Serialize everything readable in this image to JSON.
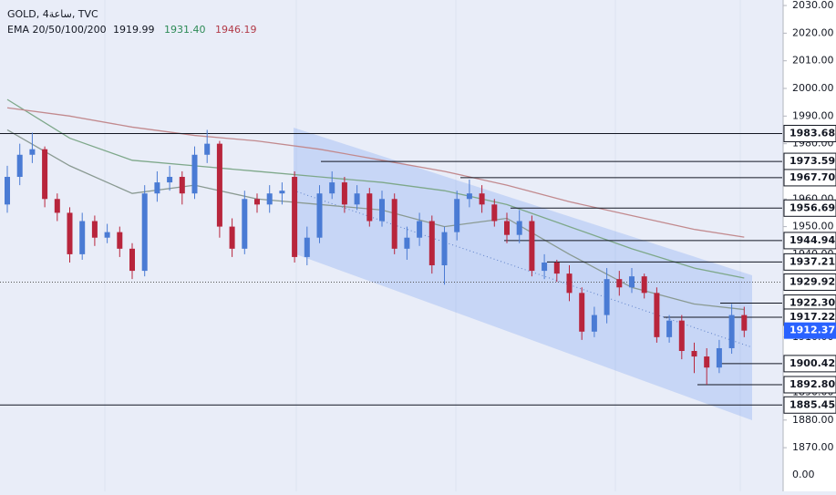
{
  "chart_data": {
    "type": "candlestick",
    "title": "GOLD, 4ساعة, TVC",
    "indicator_label": "EMA 20/50/100/200",
    "ylim": [
      1854.2,
      2032
    ],
    "yticks": [
      {
        "value": 2030,
        "label": "2030.00"
      },
      {
        "value": 2020,
        "label": "2020.00"
      },
      {
        "value": 2010,
        "label": "2010.00"
      },
      {
        "value": 2000,
        "label": "2000.00"
      },
      {
        "value": 1990,
        "label": "1990.00"
      },
      {
        "value": 1980,
        "label": "1980.00"
      },
      {
        "value": 1970,
        "label": "1970.00"
      },
      {
        "value": 1960,
        "label": "1960.00"
      },
      {
        "value": 1950,
        "label": "1950.00"
      },
      {
        "value": 1940,
        "label": "1940.00"
      },
      {
        "value": 1930,
        "label": "1930.00"
      },
      {
        "value": 1920,
        "label": "1920.00"
      },
      {
        "value": 1910,
        "label": "1910.00"
      },
      {
        "value": 1900,
        "label": "1900.00"
      },
      {
        "value": 1890,
        "label": "1890.00"
      },
      {
        "value": 1880,
        "label": "1880.00"
      },
      {
        "value": 1870,
        "label": "1870.00"
      }
    ],
    "axis_extra_label": "0.00",
    "up_color": "#4a7bd4",
    "down_color": "#b8253c",
    "open": [
      1958,
      1968,
      1976,
      1978,
      1960,
      1955,
      1940,
      1952,
      1946,
      1948,
      1942,
      1934,
      1962,
      1966,
      1968,
      1962,
      1976,
      1980,
      1950,
      1942,
      1960,
      1958,
      1962,
      1968,
      1939,
      1946,
      1962,
      1966,
      1958,
      1962,
      1952,
      1960,
      1942,
      1946,
      1952,
      1936,
      1948,
      1960,
      1962,
      1958,
      1952,
      1947,
      1952,
      1934,
      1937,
      1933,
      1926,
      1912,
      1918,
      1931,
      1928,
      1932,
      1926,
      1910,
      1916,
      1905,
      1903,
      1899,
      1906,
      1918
    ],
    "high": [
      1972,
      1980,
      1984,
      1979,
      1962,
      1957,
      1955,
      1954,
      1951,
      1950,
      1944,
      1965,
      1970,
      1972,
      1970,
      1979,
      1985,
      1981,
      1953,
      1963,
      1962,
      1965,
      1966,
      1970,
      1950,
      1965,
      1970,
      1968,
      1965,
      1964,
      1963,
      1962,
      1950,
      1955,
      1954,
      1950,
      1963,
      1967,
      1965,
      1960,
      1955,
      1956,
      1954,
      1940,
      1938,
      1936,
      1928,
      1921,
      1935,
      1934,
      1935,
      1933,
      1928,
      1918,
      1918,
      1908,
      1906,
      1909,
      1922,
      1921
    ],
    "low": [
      1955,
      1965,
      1973,
      1957,
      1952,
      1937,
      1938,
      1943,
      1944,
      1939,
      1931,
      1932,
      1959,
      1963,
      1958,
      1960,
      1973,
      1946,
      1939,
      1940,
      1955,
      1955,
      1958,
      1937,
      1936,
      1944,
      1960,
      1955,
      1956,
      1950,
      1950,
      1940,
      1938,
      1943,
      1933,
      1929,
      1945,
      1957,
      1955,
      1950,
      1944,
      1944,
      1932,
      1931,
      1930,
      1923,
      1909,
      1910,
      1915,
      1925,
      1926,
      1924,
      1908,
      1908,
      1902,
      1897,
      1892.8,
      1897,
      1904,
      1910
    ],
    "close": [
      1968,
      1976,
      1978,
      1960,
      1955,
      1940,
      1952,
      1946,
      1948,
      1942,
      1934,
      1962,
      1966,
      1968,
      1962,
      1976,
      1980,
      1950,
      1942,
      1960,
      1958,
      1962,
      1963,
      1939,
      1946,
      1962,
      1966,
      1958,
      1962,
      1952,
      1960,
      1942,
      1946,
      1952,
      1936,
      1948,
      1960,
      1962,
      1958,
      1952,
      1947,
      1952,
      1934,
      1937,
      1933,
      1926,
      1912,
      1918,
      1931,
      1928,
      1932,
      1926,
      1910,
      1916,
      1905,
      1903,
      1899,
      1906,
      1918,
      1912.37
    ],
    "ema_x": [
      0,
      5,
      10,
      15,
      20,
      25,
      30,
      35,
      40,
      45,
      50,
      55,
      59
    ],
    "series": [
      {
        "name": "1919.99",
        "color": "#8a9a92",
        "values": [
          1985,
          1972,
          1962,
          1965,
          1960,
          1958,
          1956,
          1950,
          1953,
          1940,
          1928,
          1922,
          1919.99
        ]
      },
      {
        "name": "1931.40",
        "color": "#7ea88a",
        "values": [
          1996,
          1982,
          1974,
          1972,
          1970,
          1968,
          1966,
          1963,
          1958,
          1950,
          1942,
          1935,
          1931.4
        ]
      },
      {
        "name": "1946.19",
        "color": "#c28a8e",
        "values": [
          1993,
          1990,
          1986,
          1983,
          1981,
          1978,
          1974,
          1970,
          1965,
          1959,
          1954,
          1949,
          1946.19
        ]
      }
    ],
    "levels": [
      {
        "value": 1983.68,
        "label": "1983.68"
      },
      {
        "value": 1973.59,
        "label": "1973.59"
      },
      {
        "value": 1967.7,
        "label": "1967.70"
      },
      {
        "value": 1956.69,
        "label": "1956.69"
      },
      {
        "value": 1944.94,
        "label": "1944.94"
      },
      {
        "value": 1937.21,
        "label": "1937.21"
      },
      {
        "value": 1929.92,
        "label": "1929.92"
      },
      {
        "value": 1922.3,
        "label": "1922.30"
      },
      {
        "value": 1917.22,
        "label": "1917.22"
      },
      {
        "value": 1900.42,
        "label": "1900.42"
      },
      {
        "value": 1892.8,
        "label": "1892.80"
      },
      {
        "value": 1885.45,
        "label": "1885.45"
      }
    ],
    "last_price": {
      "value": 1912.37,
      "label": "1912.37",
      "color": "#2962ff"
    }
  }
}
